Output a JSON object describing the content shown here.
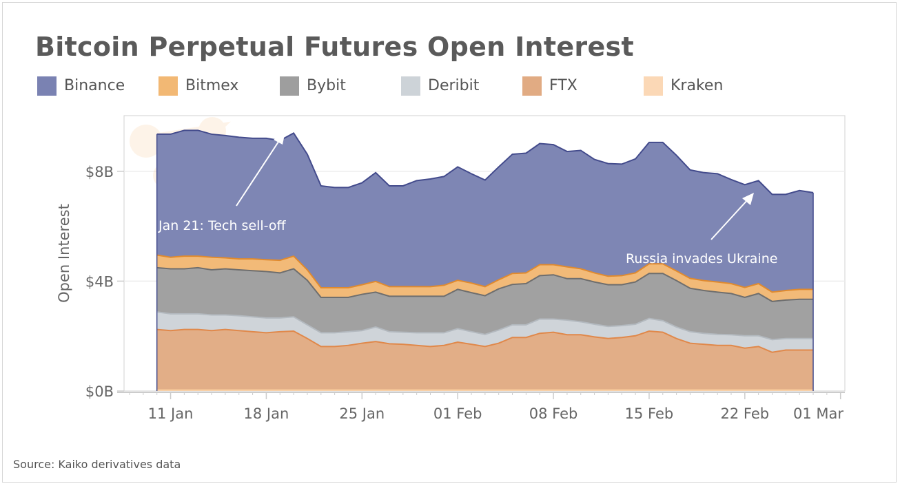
{
  "chart_data": {
    "type": "area",
    "stacked": true,
    "title": "Bitcoin Perpetual Futures Open Interest",
    "ylabel": "Open Interest",
    "xlabel": "",
    "y_unit": "billion USD",
    "ylim": [
      0,
      10
    ],
    "yticks": [
      {
        "value": 0,
        "label": "$0B"
      },
      {
        "value": 4,
        "label": "$4B"
      },
      {
        "value": 8,
        "label": "$8B"
      }
    ],
    "x_start": "2022-01-10",
    "x_end": "2022-02-27",
    "xticks": [
      {
        "day": 1,
        "label": "11 Jan"
      },
      {
        "day": 8,
        "label": "18 Jan"
      },
      {
        "day": 15,
        "label": "25 Jan"
      },
      {
        "day": 22,
        "label": "01 Feb"
      },
      {
        "day": 29,
        "label": "08 Feb"
      },
      {
        "day": 36,
        "label": "15 Feb"
      },
      {
        "day": 43,
        "label": "22 Feb"
      },
      {
        "day": 50,
        "label": "01 Mar"
      }
    ],
    "grid": true,
    "legend_placement": "top",
    "series": [
      {
        "name": "Binance",
        "color": "#7a82b2",
        "stroke": "#434b8c",
        "values": [
          4.4,
          4.48,
          4.58,
          4.58,
          4.48,
          4.45,
          4.43,
          4.39,
          4.42,
          4.36,
          4.48,
          4.21,
          3.71,
          3.65,
          3.65,
          3.71,
          3.96,
          3.67,
          3.67,
          3.86,
          3.92,
          3.96,
          4.13,
          3.98,
          3.88,
          4.11,
          4.34,
          4.36,
          4.41,
          4.37,
          4.2,
          4.31,
          4.13,
          4.1,
          4.06,
          4.15,
          4.42,
          4.42,
          4.21,
          3.95,
          3.93,
          3.94,
          3.79,
          3.74,
          3.75,
          3.56,
          3.5,
          3.6,
          3.52
        ]
      },
      {
        "name": "Bitmex",
        "color": "#f2b874",
        "stroke": "#e08a2e",
        "values": [
          0.46,
          0.42,
          0.46,
          0.42,
          0.46,
          0.4,
          0.4,
          0.43,
          0.43,
          0.46,
          0.46,
          0.38,
          0.35,
          0.35,
          0.35,
          0.35,
          0.39,
          0.35,
          0.35,
          0.35,
          0.35,
          0.4,
          0.33,
          0.35,
          0.33,
          0.33,
          0.4,
          0.39,
          0.4,
          0.37,
          0.43,
          0.36,
          0.33,
          0.31,
          0.33,
          0.33,
          0.35,
          0.35,
          0.35,
          0.36,
          0.36,
          0.37,
          0.36,
          0.36,
          0.36,
          0.34,
          0.35,
          0.36,
          0.36
        ]
      },
      {
        "name": "Bybit",
        "color": "#9e9e9e",
        "stroke": "#6e6e6e",
        "values": [
          1.61,
          1.64,
          1.64,
          1.68,
          1.64,
          1.68,
          1.67,
          1.68,
          1.69,
          1.64,
          1.75,
          1.62,
          1.29,
          1.29,
          1.25,
          1.32,
          1.27,
          1.29,
          1.31,
          1.33,
          1.33,
          1.33,
          1.43,
          1.42,
          1.41,
          1.5,
          1.47,
          1.5,
          1.58,
          1.61,
          1.51,
          1.57,
          1.54,
          1.52,
          1.49,
          1.54,
          1.64,
          1.72,
          1.69,
          1.58,
          1.56,
          1.54,
          1.5,
          1.4,
          1.54,
          1.39,
          1.4,
          1.43,
          1.43
        ]
      },
      {
        "name": "Deribit",
        "color": "#cdd3d8",
        "stroke": "#b3b9bf",
        "values": [
          0.64,
          0.61,
          0.57,
          0.57,
          0.57,
          0.53,
          0.54,
          0.54,
          0.54,
          0.5,
          0.52,
          0.5,
          0.5,
          0.5,
          0.5,
          0.46,
          0.53,
          0.44,
          0.44,
          0.46,
          0.5,
          0.46,
          0.49,
          0.46,
          0.44,
          0.48,
          0.46,
          0.46,
          0.52,
          0.48,
          0.53,
          0.47,
          0.46,
          0.44,
          0.43,
          0.42,
          0.46,
          0.42,
          0.42,
          0.42,
          0.4,
          0.4,
          0.39,
          0.45,
          0.39,
          0.46,
          0.42,
          0.42,
          0.42
        ]
      },
      {
        "name": "FTX",
        "color": "#e1ab83",
        "stroke": "#e0884a",
        "values": [
          2.2,
          2.16,
          2.2,
          2.2,
          2.16,
          2.2,
          2.16,
          2.12,
          2.08,
          2.12,
          2.14,
          1.87,
          1.58,
          1.58,
          1.62,
          1.7,
          1.76,
          1.68,
          1.66,
          1.62,
          1.58,
          1.62,
          1.74,
          1.66,
          1.58,
          1.7,
          1.91,
          1.91,
          2.06,
          2.1,
          2.01,
          2.01,
          1.93,
          1.87,
          1.91,
          1.97,
          2.14,
          2.1,
          1.87,
          1.7,
          1.66,
          1.62,
          1.62,
          1.52,
          1.58,
          1.37,
          1.45,
          1.45,
          1.45
        ]
      },
      {
        "name": "Kraken",
        "color": "#fbd8b6",
        "stroke": "#f6c898",
        "values": [
          0.04,
          0.04,
          0.04,
          0.04,
          0.04,
          0.04,
          0.04,
          0.04,
          0.04,
          0.04,
          0.04,
          0.04,
          0.04,
          0.04,
          0.04,
          0.04,
          0.04,
          0.04,
          0.04,
          0.04,
          0.04,
          0.04,
          0.04,
          0.04,
          0.04,
          0.04,
          0.04,
          0.04,
          0.04,
          0.04,
          0.04,
          0.04,
          0.04,
          0.04,
          0.04,
          0.04,
          0.04,
          0.04,
          0.04,
          0.04,
          0.04,
          0.04,
          0.04,
          0.04,
          0.04,
          0.04,
          0.04,
          0.04,
          0.04
        ]
      }
    ],
    "annotations": [
      {
        "text": "Jan 21: Tech sell-off",
        "day": 10
      },
      {
        "text": "Russia invades Ukraine",
        "day": 44
      }
    ]
  },
  "source": "Source: Kaiko derivatives data"
}
